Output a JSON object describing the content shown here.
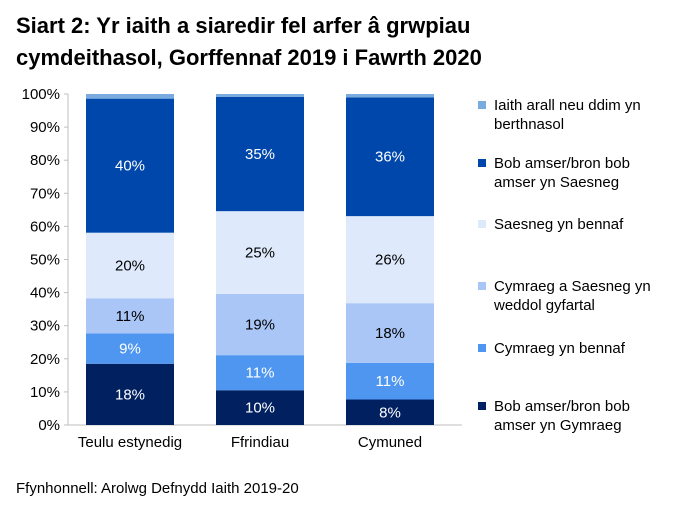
{
  "title_lines": [
    "Siart 2: Yr iaith a siaredir fel arfer â grwpiau",
    "cymdeithasol, Gorffennaf 2019 i Fawrth 2020"
  ],
  "source": "Ffynhonnell: Arolwg Defnydd Iaith 2019-20",
  "chart_data": {
    "type": "bar",
    "stacked": true,
    "categories": [
      "Teulu estynedig",
      "Ffrindiau",
      "Cymuned"
    ],
    "ylim": [
      0,
      100
    ],
    "yticks": [
      "0%",
      "10%",
      "20%",
      "30%",
      "40%",
      "50%",
      "60%",
      "70%",
      "80%",
      "90%",
      "100%"
    ],
    "grid": false,
    "legend_position": "right",
    "series": [
      {
        "name": "Bob amser/bron bob amser yn Gymraeg",
        "values": [
          18.5,
          10.5,
          7.7
        ],
        "labels": [
          "18%",
          "10%",
          "8%"
        ],
        "color": "#002060",
        "label_color": "#ffffff"
      },
      {
        "name": "Cymraeg yn bennaf",
        "values": [
          9.2,
          10.6,
          11.1
        ],
        "labels": [
          "9%",
          "11%",
          "11%"
        ],
        "color": "#4f96f0",
        "label_color": "#ffffff"
      },
      {
        "name": "Cymraeg a Saesneg yn weddol gyfartal",
        "values": [
          10.6,
          18.5,
          18.0
        ],
        "labels": [
          "11%",
          "19%",
          "18%"
        ],
        "color": "#a9c6f7",
        "label_color": "#000000"
      },
      {
        "name": "Saesneg yn bennaf",
        "values": [
          19.8,
          25.0,
          26.3
        ],
        "labels": [
          "20%",
          "25%",
          "26%"
        ],
        "color": "#deeafc",
        "label_color": "#000000"
      },
      {
        "name": "Bob amser/bron bob amser yn Saesneg",
        "values": [
          40.5,
          34.5,
          35.9
        ],
        "labels": [
          "40%",
          "35%",
          "36%"
        ],
        "color": "#0047ab",
        "label_color": "#ffffff"
      },
      {
        "name": "Iaith arall neu ddim yn berthnasol",
        "values": [
          1.4,
          0.9,
          1.0
        ],
        "labels": [
          "",
          "",
          ""
        ],
        "color": "#7aabdf",
        "label_color": "#000000"
      }
    ]
  }
}
